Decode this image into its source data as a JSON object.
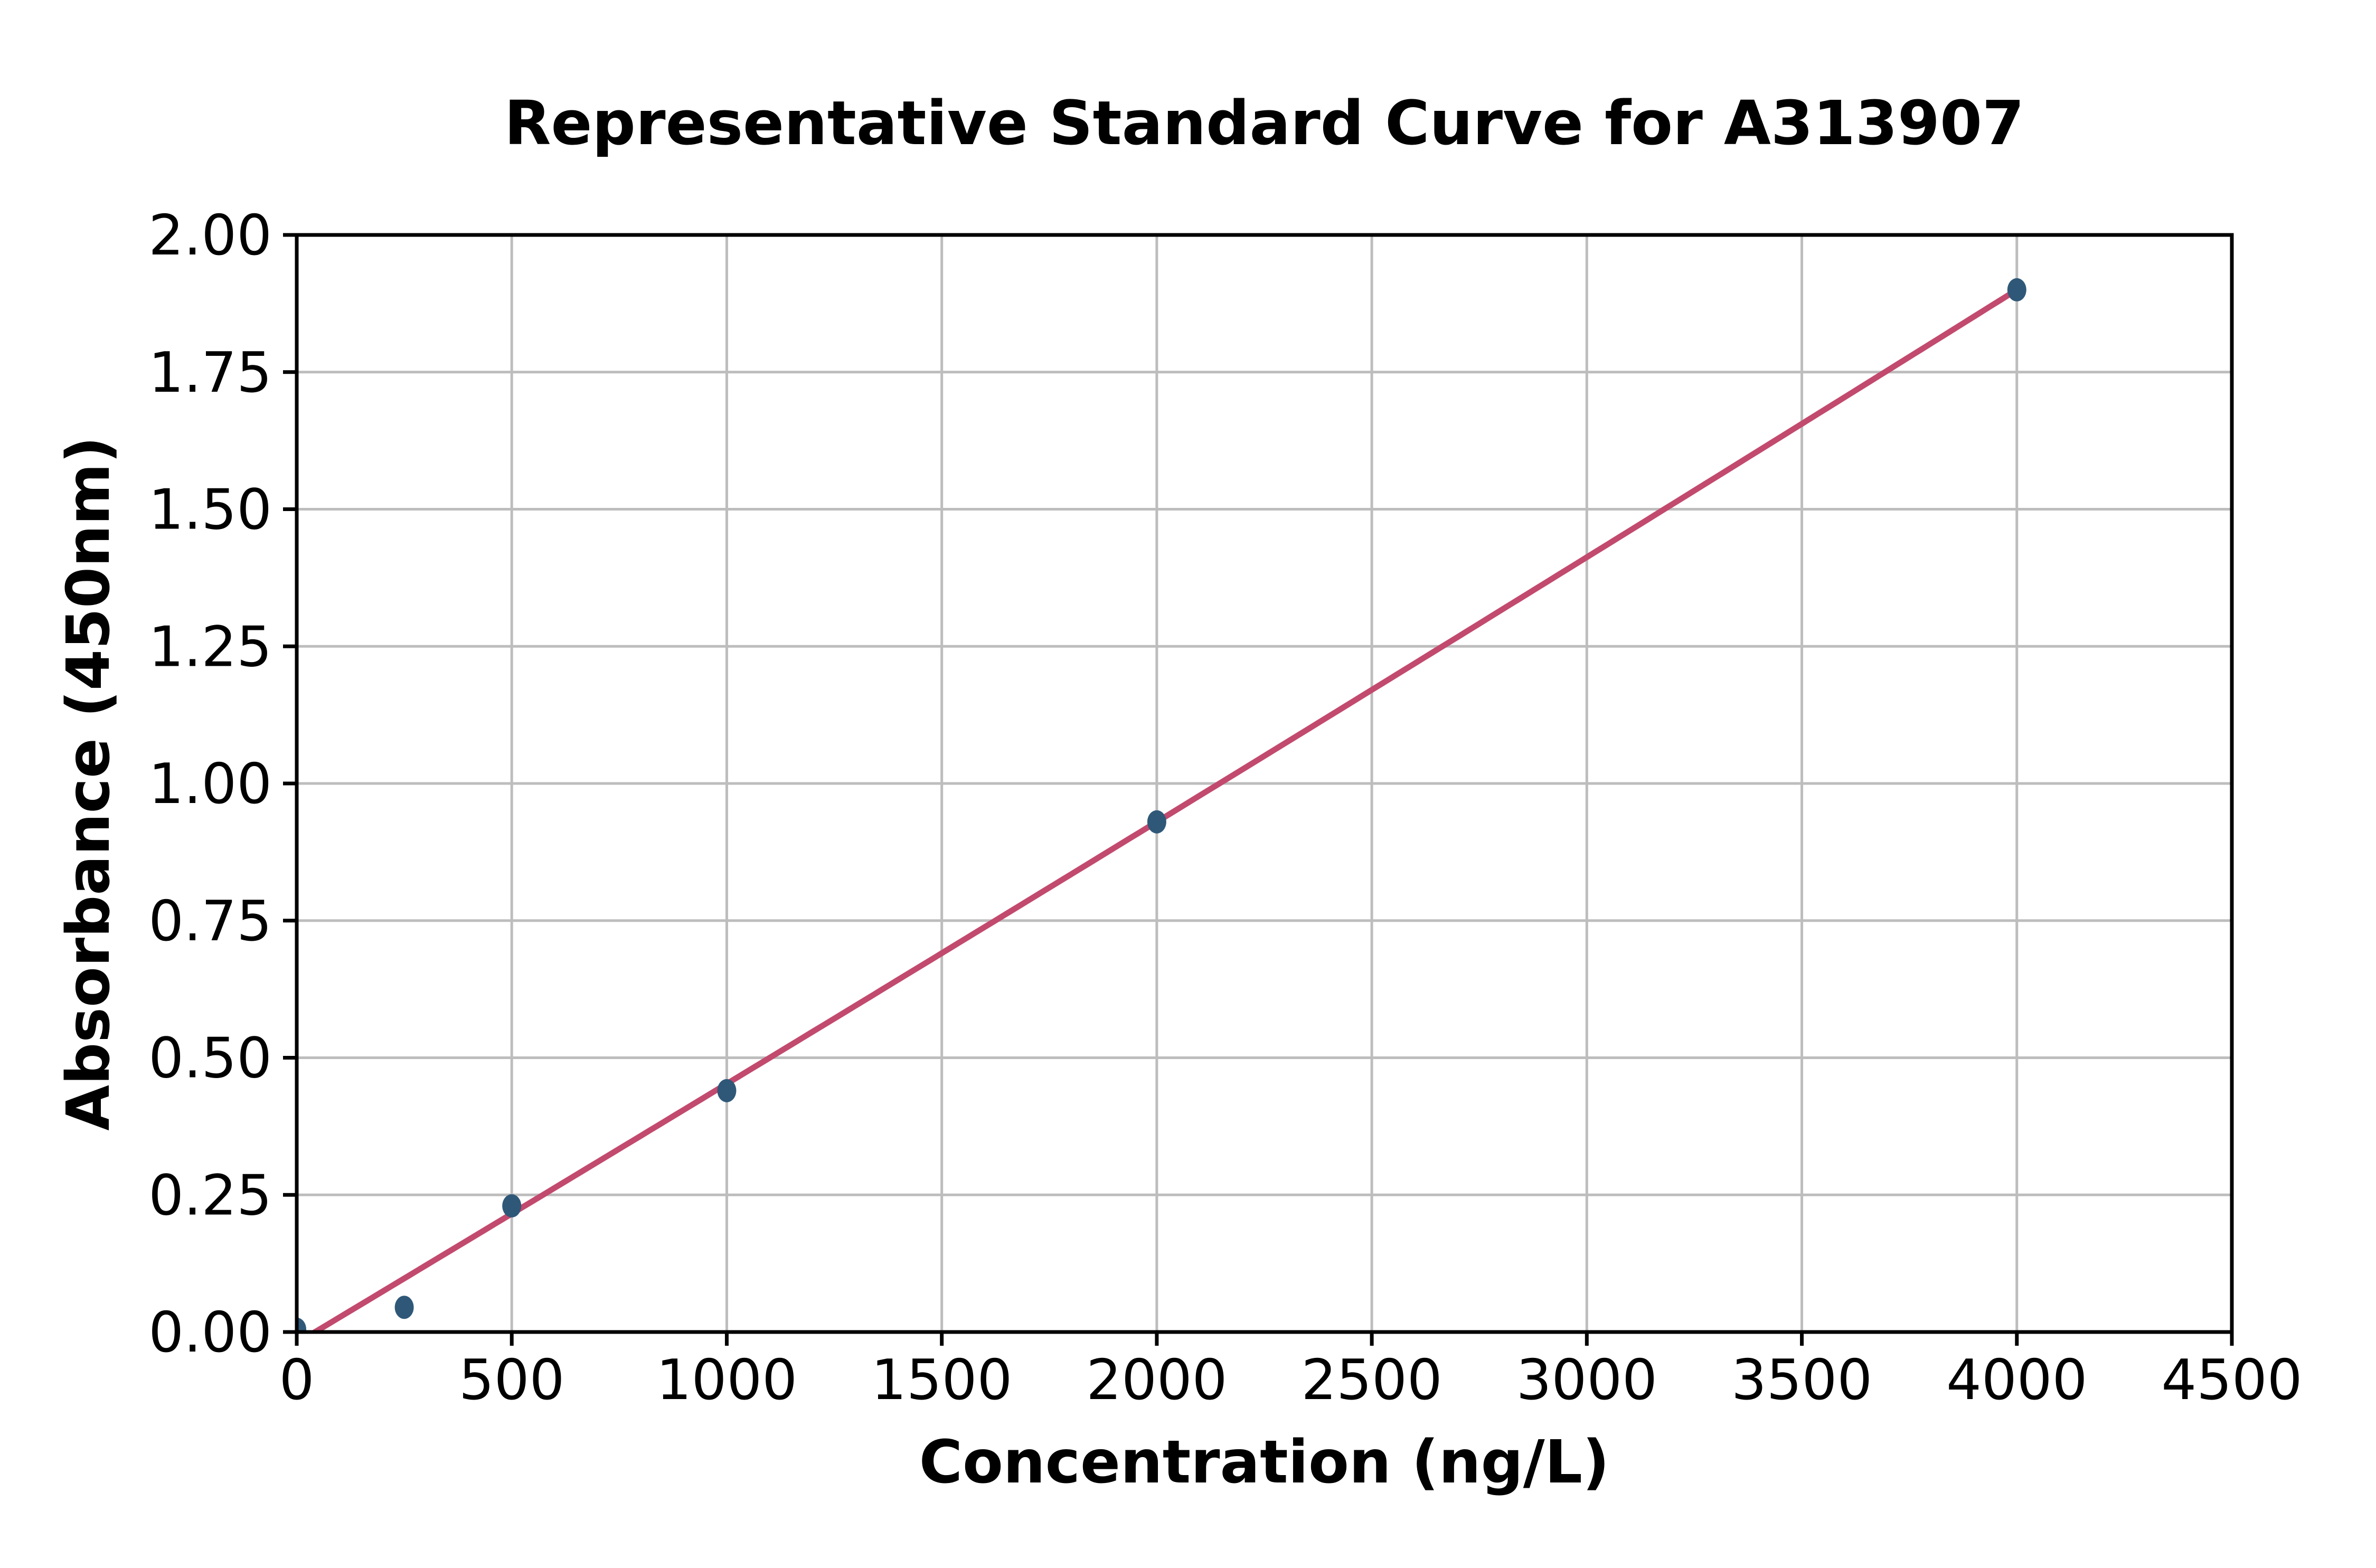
{
  "chart_data": {
    "type": "scatter",
    "title": "Representative Standard Curve for A313907",
    "xlabel": "Concentration (ng/L)",
    "ylabel": "Absorbance (450nm)",
    "xlim": [
      0,
      4500
    ],
    "ylim": [
      0.0,
      2.0
    ],
    "grid": true,
    "legend": "none",
    "x_ticks": [
      0,
      500,
      1000,
      1500,
      2000,
      2500,
      3000,
      3500,
      4000,
      4500
    ],
    "x_tick_labels": [
      "0",
      "500",
      "1000",
      "1500",
      "2000",
      "2500",
      "3000",
      "3500",
      "4000",
      "4500"
    ],
    "y_ticks": [
      0.0,
      0.25,
      0.5,
      0.75,
      1.0,
      1.25,
      1.5,
      1.75,
      2.0
    ],
    "y_tick_labels": [
      "0.00",
      "0.25",
      "0.50",
      "0.75",
      "1.00",
      "1.25",
      "1.50",
      "1.75",
      "2.00"
    ],
    "series": [
      {
        "name": "standard-points",
        "type": "scatter",
        "color": "#2f5878",
        "x": [
          0,
          250,
          500,
          1000,
          2000,
          4000
        ],
        "y": [
          0.005,
          0.045,
          0.23,
          0.44,
          0.93,
          1.9
        ]
      },
      {
        "name": "fit-curve",
        "type": "line",
        "color": "#c24a6e",
        "fit": {
          "kind": "quadratic",
          "c0": -0.02,
          "c1": 0.00047,
          "c2": 2.5e-09
        },
        "x_range": [
          0,
          4000
        ]
      }
    ],
    "colors": {
      "background": "#ffffff",
      "grid": "#bdbdbd",
      "spine": "#000000",
      "tick": "#000000",
      "text": "#000000",
      "curve": "#c24a6e",
      "marker": "#2f5878"
    }
  }
}
